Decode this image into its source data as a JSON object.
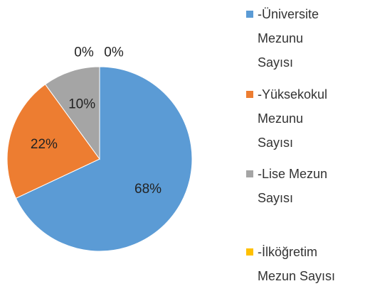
{
  "chart_data": {
    "type": "pie",
    "categories": [
      "-Üniversite Mezunu Sayısı",
      "-Yüksekokul Mezunu Sayısı",
      "-Lise Mezun Sayısı",
      "-İlköğretim Mezun Sayısı",
      null
    ],
    "values": [
      68,
      22,
      10,
      0,
      0
    ],
    "value_labels": [
      "68%",
      "22%",
      "10%",
      "0%",
      "0%"
    ],
    "colors": [
      "#5b9bd5",
      "#ed7d31",
      "#a5a5a5",
      "#ffc000",
      "#4472c4"
    ],
    "legend": "right"
  }
}
